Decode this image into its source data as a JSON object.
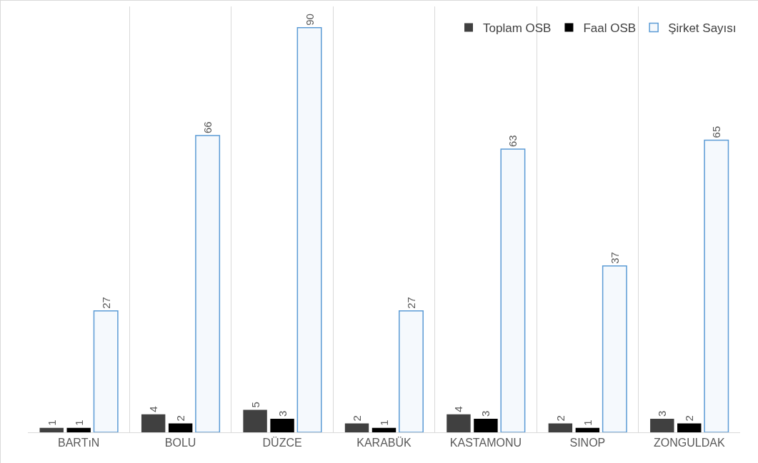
{
  "chart_data": {
    "type": "bar",
    "categories": [
      "BARTıN",
      "BOLU",
      "DÜZCE",
      "KARABÜK",
      "KASTAMONU",
      "SINOP",
      "ZONGULDAK"
    ],
    "series": [
      {
        "name": "Toplam OSB",
        "color": "#404040",
        "values": [
          1,
          4,
          5,
          2,
          4,
          2,
          3
        ]
      },
      {
        "name": "Faal OSB",
        "color": "#000000",
        "values": [
          1,
          2,
          3,
          1,
          3,
          1,
          2
        ]
      },
      {
        "name": "Şirket Sayısı",
        "color": "#5b9bd5",
        "values": [
          27,
          66,
          90,
          27,
          63,
          37,
          65
        ]
      }
    ],
    "data_labels": true,
    "grid": "x",
    "legend": "top right"
  }
}
